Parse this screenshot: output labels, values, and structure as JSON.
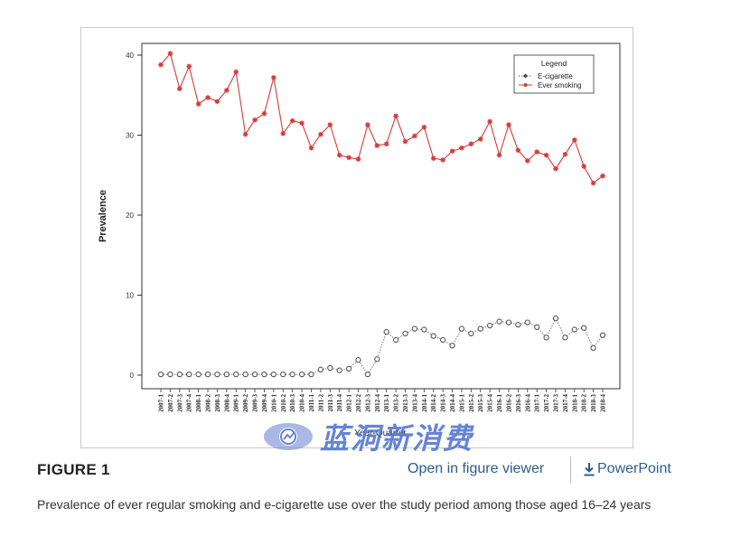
{
  "chart_data": {
    "type": "line",
    "xlabel": "Year-Quarter",
    "ylabel": "Prevalence",
    "ylim": [
      0,
      42
    ],
    "yticks": [
      0,
      10,
      20,
      30,
      40
    ],
    "grid": false,
    "legend": {
      "title": "Legend",
      "position": "top-right"
    },
    "categories": [
      "2007-1",
      "2007-2",
      "2007-3",
      "2007-4",
      "2008-1",
      "2008-2",
      "2008-3",
      "2008-4",
      "2009-1",
      "2009-2",
      "2009-3",
      "2009-4",
      "2010-1",
      "2010-2",
      "2010-3",
      "2010-4",
      "2011-1",
      "2011-2",
      "2011-3",
      "2011-4",
      "2012-1",
      "2012-2",
      "2012-3",
      "2012-4",
      "2013-1",
      "2013-2",
      "2013-3",
      "2013-4",
      "2014-1",
      "2014-2",
      "2014-3",
      "2014-4",
      "2015-1",
      "2015-2",
      "2015-3",
      "2015-4",
      "2016-1",
      "2016-2",
      "2016-3",
      "2016-4",
      "2017-1",
      "2017-2",
      "2017-3",
      "2017-4",
      "2018-1",
      "2018-2",
      "2018-3",
      "2018-4"
    ],
    "series": [
      {
        "name": "E-cigarette",
        "color": "#666666",
        "values": [
          0.1,
          0.1,
          0.1,
          0.1,
          0.1,
          0.1,
          0.1,
          0.1,
          0.1,
          0.1,
          0.1,
          0.1,
          0.1,
          0.1,
          0.1,
          0.1,
          0.1,
          0.7,
          0.9,
          0.6,
          0.8,
          1.9,
          0.1,
          2.0,
          5.4,
          4.4,
          5.2,
          5.8,
          5.7,
          4.9,
          4.4,
          3.7,
          5.8,
          5.2,
          5.8,
          6.2,
          6.7,
          6.6,
          6.3,
          6.6,
          6.0,
          4.7,
          7.1,
          4.7,
          5.7,
          5.9,
          3.4,
          5.0
        ]
      },
      {
        "name": "Ever smoking",
        "color": "#d93a3a",
        "values": [
          38.8,
          40.2,
          35.8,
          38.6,
          33.9,
          34.7,
          34.2,
          35.6,
          37.9,
          30.1,
          31.9,
          32.7,
          37.2,
          30.2,
          31.8,
          31.5,
          28.4,
          30.1,
          31.3,
          27.5,
          27.2,
          27.0,
          31.3,
          28.7,
          28.9,
          32.4,
          29.2,
          29.9,
          31.0,
          27.1,
          26.9,
          28.0,
          28.4,
          28.9,
          29.5,
          31.7,
          27.5,
          31.3,
          28.1,
          26.8,
          27.9,
          27.5,
          25.8,
          27.6,
          29.4,
          26.1,
          24.0,
          24.9
        ]
      }
    ]
  },
  "figure": {
    "label": "FIGURE 1",
    "open_viewer": "Open in figure viewer",
    "powerpoint": "PowerPoint",
    "caption": "Prevalence of ever regular smoking and e-cigarette use over the study period among those aged 16–24 years"
  },
  "watermark": {
    "text": "蓝洞新消费",
    "icon": "chart-circle-logo-icon",
    "color": "#4b6fd1"
  },
  "colors": {
    "link": "#2b5c92",
    "smoking": "#d93a3a",
    "ecig": "#666666"
  }
}
